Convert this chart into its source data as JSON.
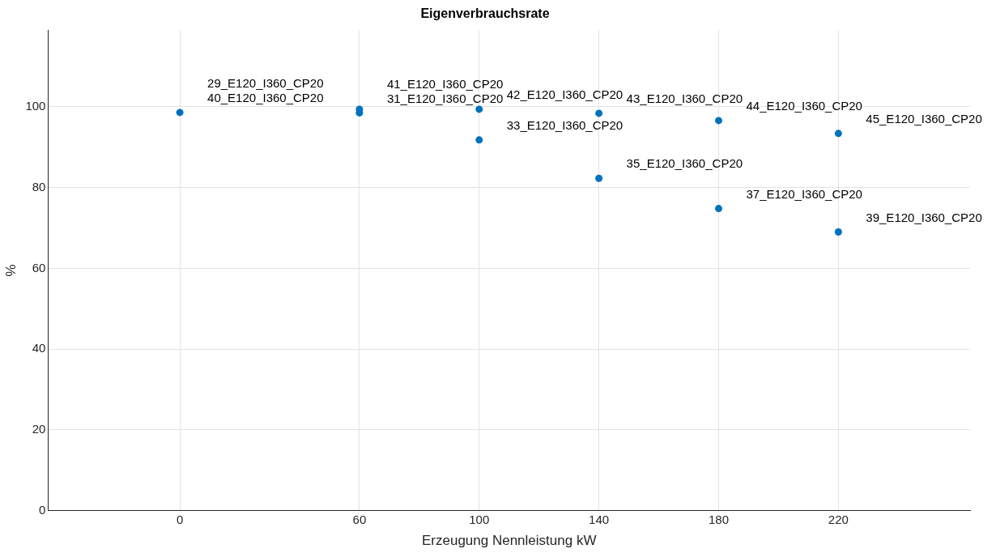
{
  "chart_data": {
    "type": "scatter",
    "title": "Eigenverbrauchsrate",
    "xlabel": "Erzeugung Nennleistung kW",
    "ylabel": "%",
    "x": [
      0,
      60,
      60,
      100,
      100,
      140,
      140,
      180,
      180,
      220,
      220
    ],
    "series": [
      {
        "color": "#0072bd",
        "values": [
          98.6,
          98.5,
          99.4,
          99.4,
          91.8,
          98.4,
          82.3,
          96.6,
          74.8,
          93.4,
          69.0
        ]
      }
    ],
    "xlim": [
      -44,
      264
    ],
    "xticks": [
      0,
      60,
      100,
      140,
      180,
      220
    ],
    "ylim": [
      0,
      119
    ],
    "yticks": [
      0,
      20,
      40,
      60,
      80,
      100
    ],
    "grid": true,
    "legend": false,
    "marker": "circle",
    "annotations": [
      {
        "text": "40_E120_I360_CP20",
        "x": 0,
        "y": 98.6
      },
      {
        "text": "29_E120_I360_CP20",
        "x": 0,
        "y": 98.6
      },
      {
        "text": "31_E120_I360_CP20",
        "x": 60,
        "y": 98.5
      },
      {
        "text": "41_E120_I360_CP20",
        "x": 60,
        "y": 99.4
      },
      {
        "text": "42_E120_I360_CP20",
        "x": 100,
        "y": 99.4
      },
      {
        "text": "33_E120_I360_CP20",
        "x": 100,
        "y": 91.8
      },
      {
        "text": "43_E120_I360_CP20",
        "x": 140,
        "y": 98.4
      },
      {
        "text": "35_E120_I360_CP20",
        "x": 140,
        "y": 82.3
      },
      {
        "text": "44_E120_I360_CP20",
        "x": 180,
        "y": 96.6
      },
      {
        "text": "37_E120_I360_CP20",
        "x": 180,
        "y": 74.8
      },
      {
        "text": "45_E120_I360_CP20",
        "x": 220,
        "y": 93.4
      },
      {
        "text": "39_E120_I360_CP20",
        "x": 220,
        "y": 69.0
      }
    ]
  }
}
